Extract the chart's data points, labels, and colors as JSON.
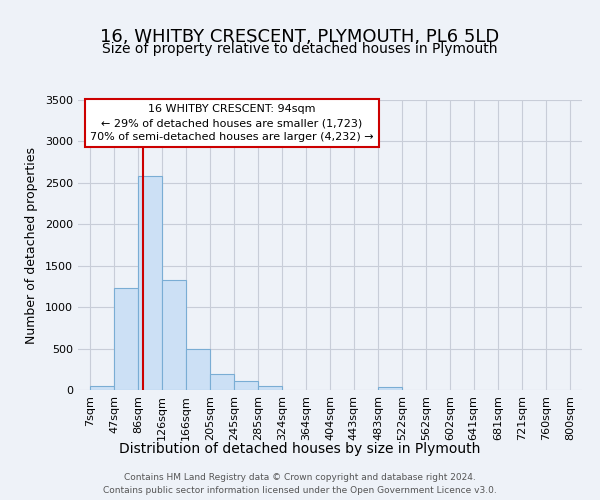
{
  "title": "16, WHITBY CRESCENT, PLYMOUTH, PL6 5LD",
  "subtitle": "Size of property relative to detached houses in Plymouth",
  "xlabel": "Distribution of detached houses by size in Plymouth",
  "ylabel": "Number of detached properties",
  "bar_edges": [
    7,
    47,
    86,
    126,
    166,
    205,
    245,
    285,
    324,
    364,
    404,
    443,
    483,
    522,
    562,
    602,
    641,
    681,
    721,
    760,
    800
  ],
  "bar_heights": [
    50,
    1230,
    2580,
    1330,
    500,
    195,
    110,
    50,
    0,
    0,
    0,
    0,
    35,
    0,
    0,
    0,
    0,
    0,
    0,
    0
  ],
  "bar_color": "#cce0f5",
  "bar_edge_color": "#7aadd4",
  "property_line_x": 94,
  "property_line_color": "#cc0000",
  "annotation_line1": "16 WHITBY CRESCENT: 94sqm",
  "annotation_line2": "← 29% of detached houses are smaller (1,723)",
  "annotation_line3": "70% of semi-detached houses are larger (4,232) →",
  "annotation_box_color": "#ffffff",
  "annotation_box_edge": "#cc0000",
  "ylim": [
    0,
    3500
  ],
  "yticks": [
    0,
    500,
    1000,
    1500,
    2000,
    2500,
    3000,
    3500
  ],
  "background_color": "#eef2f8",
  "plot_bg_color": "#eef2f8",
  "grid_color": "#c8cdd8",
  "title_fontsize": 13,
  "subtitle_fontsize": 10,
  "xlabel_fontsize": 10,
  "ylabel_fontsize": 9,
  "tick_fontsize": 8,
  "annotation_fontsize": 8,
  "footer_line1": "Contains HM Land Registry data © Crown copyright and database right 2024.",
  "footer_line2": "Contains public sector information licensed under the Open Government Licence v3.0."
}
